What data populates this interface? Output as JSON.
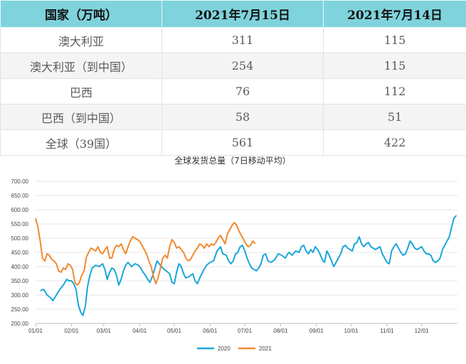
{
  "table": {
    "headers": [
      "国家（万吨）",
      "2021年7月15日",
      "2021年7月14日"
    ],
    "rows": [
      [
        "澳大利亚",
        "311",
        "115"
      ],
      [
        "澳大利亚（到中国）",
        "254",
        "115"
      ],
      [
        "巴西",
        "76",
        "112"
      ],
      [
        "巴西（到中国）",
        "58",
        "51"
      ],
      [
        "全球（39国）",
        "561",
        "422"
      ]
    ]
  },
  "chart_data": {
    "type": "line",
    "title": "全球发货总量（7日移动平均）",
    "xlabel": "",
    "ylabel": "",
    "ylim": [
      200,
      700
    ],
    "ytick_labels": [
      "200.00",
      "250.00",
      "300.00",
      "350.00",
      "400.00",
      "450.00",
      "500.00",
      "550.00",
      "600.00",
      "650.00",
      "700.00"
    ],
    "xtick_labels": [
      "01/01",
      "02/01",
      "03/01",
      "04/01",
      "05/01",
      "06/01",
      "07/01",
      "08/01",
      "09/01",
      "10/01",
      "11/01",
      "12/01"
    ],
    "xtick_days": [
      0,
      31,
      59,
      90,
      120,
      151,
      181,
      212,
      243,
      273,
      304,
      334
    ],
    "xlim_days": [
      0,
      365
    ],
    "grid": "horizontal",
    "legend_position": "bottom-center",
    "series": [
      {
        "name": "2020",
        "color": "#1aa6d9",
        "points": [
          [
            4,
            315
          ],
          [
            7,
            320
          ],
          [
            10,
            300
          ],
          [
            13,
            290
          ],
          [
            15,
            280
          ],
          [
            18,
            300
          ],
          [
            21,
            320
          ],
          [
            24,
            335
          ],
          [
            27,
            355
          ],
          [
            29,
            350
          ],
          [
            31,
            350
          ],
          [
            33,
            340
          ],
          [
            35,
            320
          ],
          [
            37,
            265
          ],
          [
            39,
            240
          ],
          [
            41,
            228
          ],
          [
            43,
            260
          ],
          [
            45,
            330
          ],
          [
            47,
            370
          ],
          [
            49,
            395
          ],
          [
            52,
            405
          ],
          [
            55,
            400
          ],
          [
            58,
            410
          ],
          [
            60,
            390
          ],
          [
            62,
            355
          ],
          [
            64,
            380
          ],
          [
            66,
            395
          ],
          [
            68,
            390
          ],
          [
            70,
            370
          ],
          [
            72,
            335
          ],
          [
            74,
            355
          ],
          [
            76,
            385
          ],
          [
            78,
            405
          ],
          [
            80,
            415
          ],
          [
            83,
            400
          ],
          [
            86,
            410
          ],
          [
            89,
            405
          ],
          [
            91,
            395
          ],
          [
            93,
            380
          ],
          [
            95,
            370
          ],
          [
            97,
            355
          ],
          [
            99,
            345
          ],
          [
            101,
            365
          ],
          [
            103,
            390
          ],
          [
            105,
            420
          ],
          [
            107,
            410
          ],
          [
            110,
            395
          ],
          [
            113,
            385
          ],
          [
            116,
            375
          ],
          [
            118,
            345
          ],
          [
            120,
            340
          ],
          [
            122,
            380
          ],
          [
            124,
            410
          ],
          [
            126,
            400
          ],
          [
            128,
            375
          ],
          [
            130,
            360
          ],
          [
            133,
            365
          ],
          [
            136,
            375
          ],
          [
            138,
            350
          ],
          [
            140,
            340
          ],
          [
            142,
            360
          ],
          [
            145,
            385
          ],
          [
            148,
            405
          ],
          [
            151,
            415
          ],
          [
            154,
            420
          ],
          [
            157,
            455
          ],
          [
            160,
            470
          ],
          [
            162,
            445
          ],
          [
            165,
            440
          ],
          [
            167,
            420
          ],
          [
            169,
            410
          ],
          [
            171,
            420
          ],
          [
            173,
            445
          ],
          [
            175,
            450
          ],
          [
            177,
            470
          ],
          [
            179,
            475
          ],
          [
            181,
            455
          ],
          [
            183,
            430
          ],
          [
            185,
            410
          ],
          [
            187,
            395
          ],
          [
            189,
            390
          ],
          [
            191,
            385
          ],
          [
            193,
            395
          ],
          [
            195,
            410
          ],
          [
            197,
            440
          ],
          [
            199,
            445
          ],
          [
            201,
            420
          ],
          [
            204,
            415
          ],
          [
            207,
            425
          ],
          [
            210,
            445
          ],
          [
            213,
            440
          ],
          [
            216,
            430
          ],
          [
            219,
            450
          ],
          [
            222,
            440
          ],
          [
            225,
            455
          ],
          [
            228,
            450
          ],
          [
            230,
            470
          ],
          [
            232,
            475
          ],
          [
            234,
            455
          ],
          [
            236,
            445
          ],
          [
            238,
            460
          ],
          [
            240,
            450
          ],
          [
            242,
            470
          ],
          [
            244,
            460
          ],
          [
            246,
            445
          ],
          [
            248,
            425
          ],
          [
            250,
            415
          ],
          [
            252,
            455
          ],
          [
            254,
            440
          ],
          [
            256,
            420
          ],
          [
            258,
            400
          ],
          [
            260,
            415
          ],
          [
            262,
            430
          ],
          [
            264,
            445
          ],
          [
            266,
            470
          ],
          [
            268,
            475
          ],
          [
            270,
            465
          ],
          [
            272,
            460
          ],
          [
            274,
            455
          ],
          [
            276,
            480
          ],
          [
            278,
            485
          ],
          [
            280,
            505
          ],
          [
            282,
            480
          ],
          [
            284,
            470
          ],
          [
            286,
            480
          ],
          [
            288,
            485
          ],
          [
            290,
            470
          ],
          [
            292,
            465
          ],
          [
            294,
            460
          ],
          [
            296,
            465
          ],
          [
            298,
            470
          ],
          [
            300,
            445
          ],
          [
            302,
            430
          ],
          [
            304,
            415
          ],
          [
            306,
            410
          ],
          [
            308,
            455
          ],
          [
            310,
            470
          ],
          [
            312,
            480
          ],
          [
            314,
            465
          ],
          [
            316,
            450
          ],
          [
            318,
            440
          ],
          [
            320,
            445
          ],
          [
            322,
            465
          ],
          [
            324,
            490
          ],
          [
            326,
            480
          ],
          [
            328,
            465
          ],
          [
            330,
            460
          ],
          [
            332,
            465
          ],
          [
            334,
            470
          ],
          [
            336,
            455
          ],
          [
            338,
            445
          ],
          [
            340,
            445
          ],
          [
            342,
            440
          ],
          [
            344,
            420
          ],
          [
            346,
            415
          ],
          [
            348,
            420
          ],
          [
            350,
            430
          ],
          [
            352,
            460
          ],
          [
            354,
            475
          ],
          [
            356,
            490
          ],
          [
            358,
            505
          ],
          [
            360,
            540
          ],
          [
            362,
            570
          ],
          [
            364,
            580
          ]
        ]
      },
      {
        "name": "2021",
        "color": "#f08a30",
        "points": [
          [
            0,
            570
          ],
          [
            2,
            540
          ],
          [
            4,
            490
          ],
          [
            6,
            430
          ],
          [
            8,
            420
          ],
          [
            10,
            445
          ],
          [
            12,
            440
          ],
          [
            14,
            425
          ],
          [
            16,
            420
          ],
          [
            18,
            410
          ],
          [
            20,
            385
          ],
          [
            22,
            380
          ],
          [
            24,
            395
          ],
          [
            26,
            390
          ],
          [
            28,
            410
          ],
          [
            30,
            405
          ],
          [
            32,
            390
          ],
          [
            34,
            345
          ],
          [
            36,
            335
          ],
          [
            38,
            345
          ],
          [
            40,
            370
          ],
          [
            42,
            385
          ],
          [
            44,
            435
          ],
          [
            46,
            450
          ],
          [
            48,
            465
          ],
          [
            50,
            460
          ],
          [
            52,
            455
          ],
          [
            54,
            470
          ],
          [
            56,
            450
          ],
          [
            58,
            445
          ],
          [
            60,
            460
          ],
          [
            62,
            470
          ],
          [
            64,
            430
          ],
          [
            66,
            430
          ],
          [
            68,
            460
          ],
          [
            70,
            475
          ],
          [
            72,
            470
          ],
          [
            74,
            480
          ],
          [
            76,
            460
          ],
          [
            78,
            445
          ],
          [
            80,
            470
          ],
          [
            82,
            490
          ],
          [
            84,
            505
          ],
          [
            86,
            500
          ],
          [
            88,
            495
          ],
          [
            90,
            490
          ],
          [
            92,
            475
          ],
          [
            94,
            460
          ],
          [
            96,
            445
          ],
          [
            98,
            420
          ],
          [
            100,
            400
          ],
          [
            102,
            365
          ],
          [
            104,
            340
          ],
          [
            106,
            360
          ],
          [
            108,
            395
          ],
          [
            110,
            430
          ],
          [
            112,
            440
          ],
          [
            114,
            430
          ],
          [
            116,
            470
          ],
          [
            118,
            495
          ],
          [
            120,
            485
          ],
          [
            122,
            465
          ],
          [
            124,
            470
          ],
          [
            126,
            460
          ],
          [
            128,
            450
          ],
          [
            130,
            430
          ],
          [
            132,
            420
          ],
          [
            134,
            425
          ],
          [
            136,
            440
          ],
          [
            138,
            455
          ],
          [
            140,
            465
          ],
          [
            142,
            480
          ],
          [
            144,
            475
          ],
          [
            146,
            465
          ],
          [
            148,
            480
          ],
          [
            150,
            470
          ],
          [
            152,
            480
          ],
          [
            154,
            475
          ],
          [
            156,
            485
          ],
          [
            158,
            500
          ],
          [
            160,
            510
          ],
          [
            162,
            495
          ],
          [
            164,
            480
          ],
          [
            166,
            515
          ],
          [
            168,
            530
          ],
          [
            170,
            545
          ],
          [
            172,
            555
          ],
          [
            174,
            545
          ],
          [
            176,
            525
          ],
          [
            178,
            510
          ],
          [
            180,
            495
          ],
          [
            182,
            480
          ],
          [
            184,
            470
          ],
          [
            186,
            475
          ],
          [
            188,
            490
          ],
          [
            190,
            480
          ]
        ]
      }
    ]
  }
}
